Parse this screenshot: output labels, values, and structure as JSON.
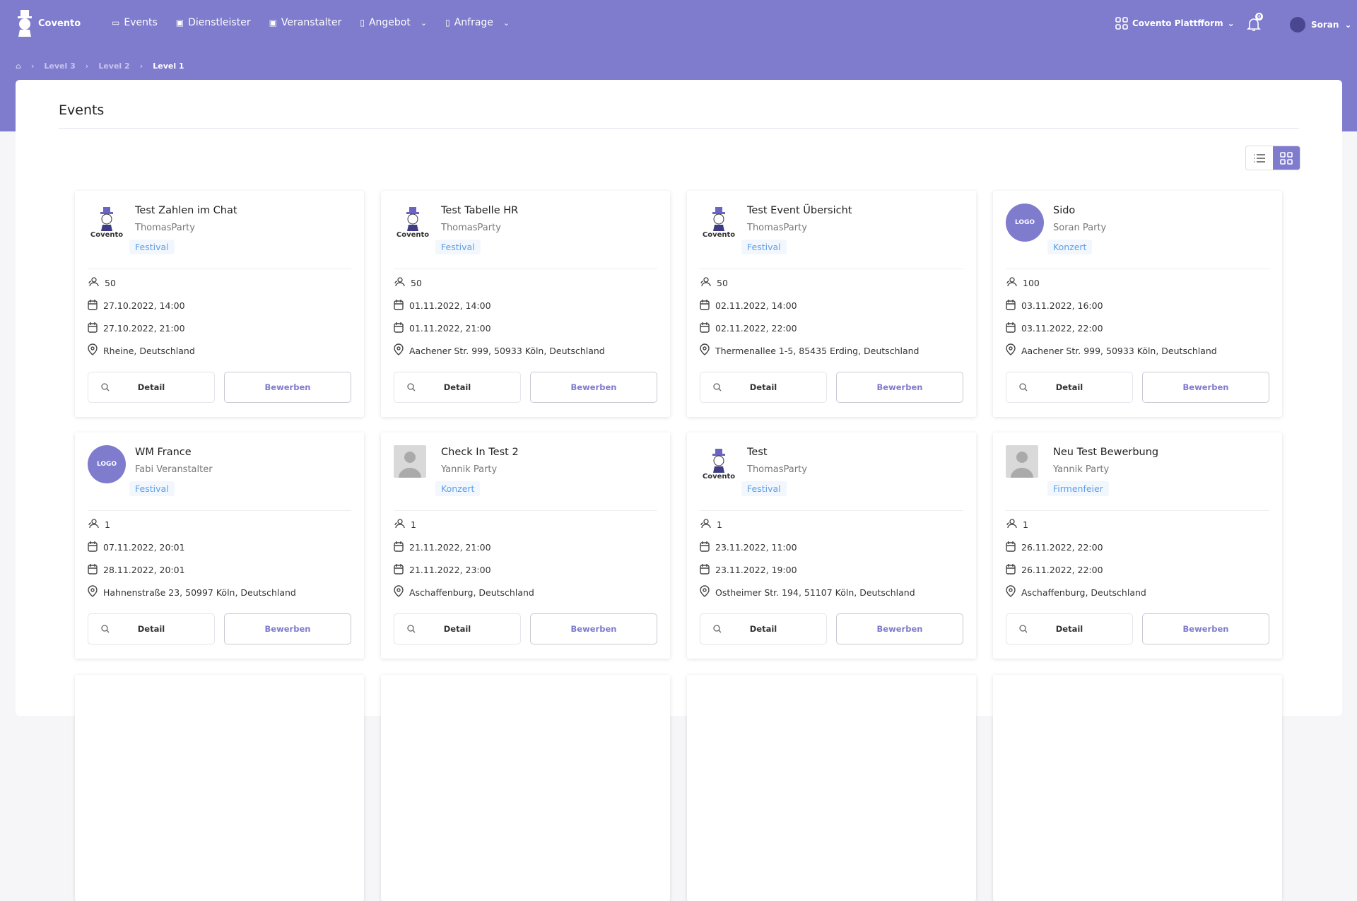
{
  "brand": "Covento",
  "nav": [
    {
      "label": "Events",
      "icon": "calendar-icon"
    },
    {
      "label": "Dienstleister",
      "icon": "id-card-icon"
    },
    {
      "label": "Veranstalter",
      "icon": "id-card-icon"
    },
    {
      "label": "Angebot",
      "icon": "document-icon",
      "dropdown": true
    },
    {
      "label": "Anfrage",
      "icon": "document-icon",
      "dropdown": true
    }
  ],
  "header": {
    "platform": "Covento Plattfform",
    "notifications": "0",
    "user": "Soran"
  },
  "breadcrumb": [
    "Level 3",
    "Level 2",
    "Level 1"
  ],
  "page": {
    "title": "Events"
  },
  "buttons": {
    "detail": "Detail",
    "apply": "Bewerben"
  },
  "avatar_logo_text": "LOGO",
  "events": [
    {
      "name": "Test Zahlen im Chat",
      "org": "ThomasParty",
      "tag": "Festival",
      "guests": "50",
      "start": "27.10.2022, 14:00",
      "end": "27.10.2022, 21:00",
      "location": "Rheine, Deutschland",
      "avatar": "covento"
    },
    {
      "name": "Test Tabelle HR",
      "org": "ThomasParty",
      "tag": "Festival",
      "guests": "50",
      "start": "01.11.2022, 14:00",
      "end": "01.11.2022, 21:00",
      "location": "Aachener Str. 999, 50933 Köln, Deutschland",
      "avatar": "covento"
    },
    {
      "name": "Test Event Übersicht",
      "org": "ThomasParty",
      "tag": "Festival",
      "guests": "50",
      "start": "02.11.2022, 14:00",
      "end": "02.11.2022, 22:00",
      "location": "Thermenallee 1-5, 85435 Erding, Deutschland",
      "avatar": "covento"
    },
    {
      "name": "Sido",
      "org": "Soran Party",
      "tag": "Konzert",
      "guests": "100",
      "start": "03.11.2022, 16:00",
      "end": "03.11.2022, 22:00",
      "location": "Aachener Str. 999, 50933 Köln, Deutschland",
      "avatar": "logo"
    },
    {
      "name": "WM France",
      "org": "Fabi Veranstalter",
      "tag": "Festival",
      "guests": "1",
      "start": "07.11.2022, 20:01",
      "end": "28.11.2022, 20:01",
      "location": "Hahnenstraße 23, 50997 Köln, Deutschland",
      "avatar": "logo"
    },
    {
      "name": "Check In Test 2",
      "org": "Yannik Party",
      "tag": "Konzert",
      "guests": "1",
      "start": "21.11.2022, 21:00",
      "end": "21.11.2022, 23:00",
      "location": "Aschaffenburg, Deutschland",
      "avatar": "placeholder"
    },
    {
      "name": "Test",
      "org": "ThomasParty",
      "tag": "Festival",
      "guests": "1",
      "start": "23.11.2022, 11:00",
      "end": "23.11.2022, 19:00",
      "location": "Ostheimer Str. 194, 51107 Köln, Deutschland",
      "avatar": "covento"
    },
    {
      "name": "Neu Test Bewerbung",
      "org": "Yannik Party",
      "tag": "Firmenfeier",
      "guests": "1",
      "start": "26.11.2022, 22:00",
      "end": "26.11.2022, 22:00",
      "location": "Aschaffenburg, Deutschland",
      "avatar": "placeholder"
    }
  ]
}
